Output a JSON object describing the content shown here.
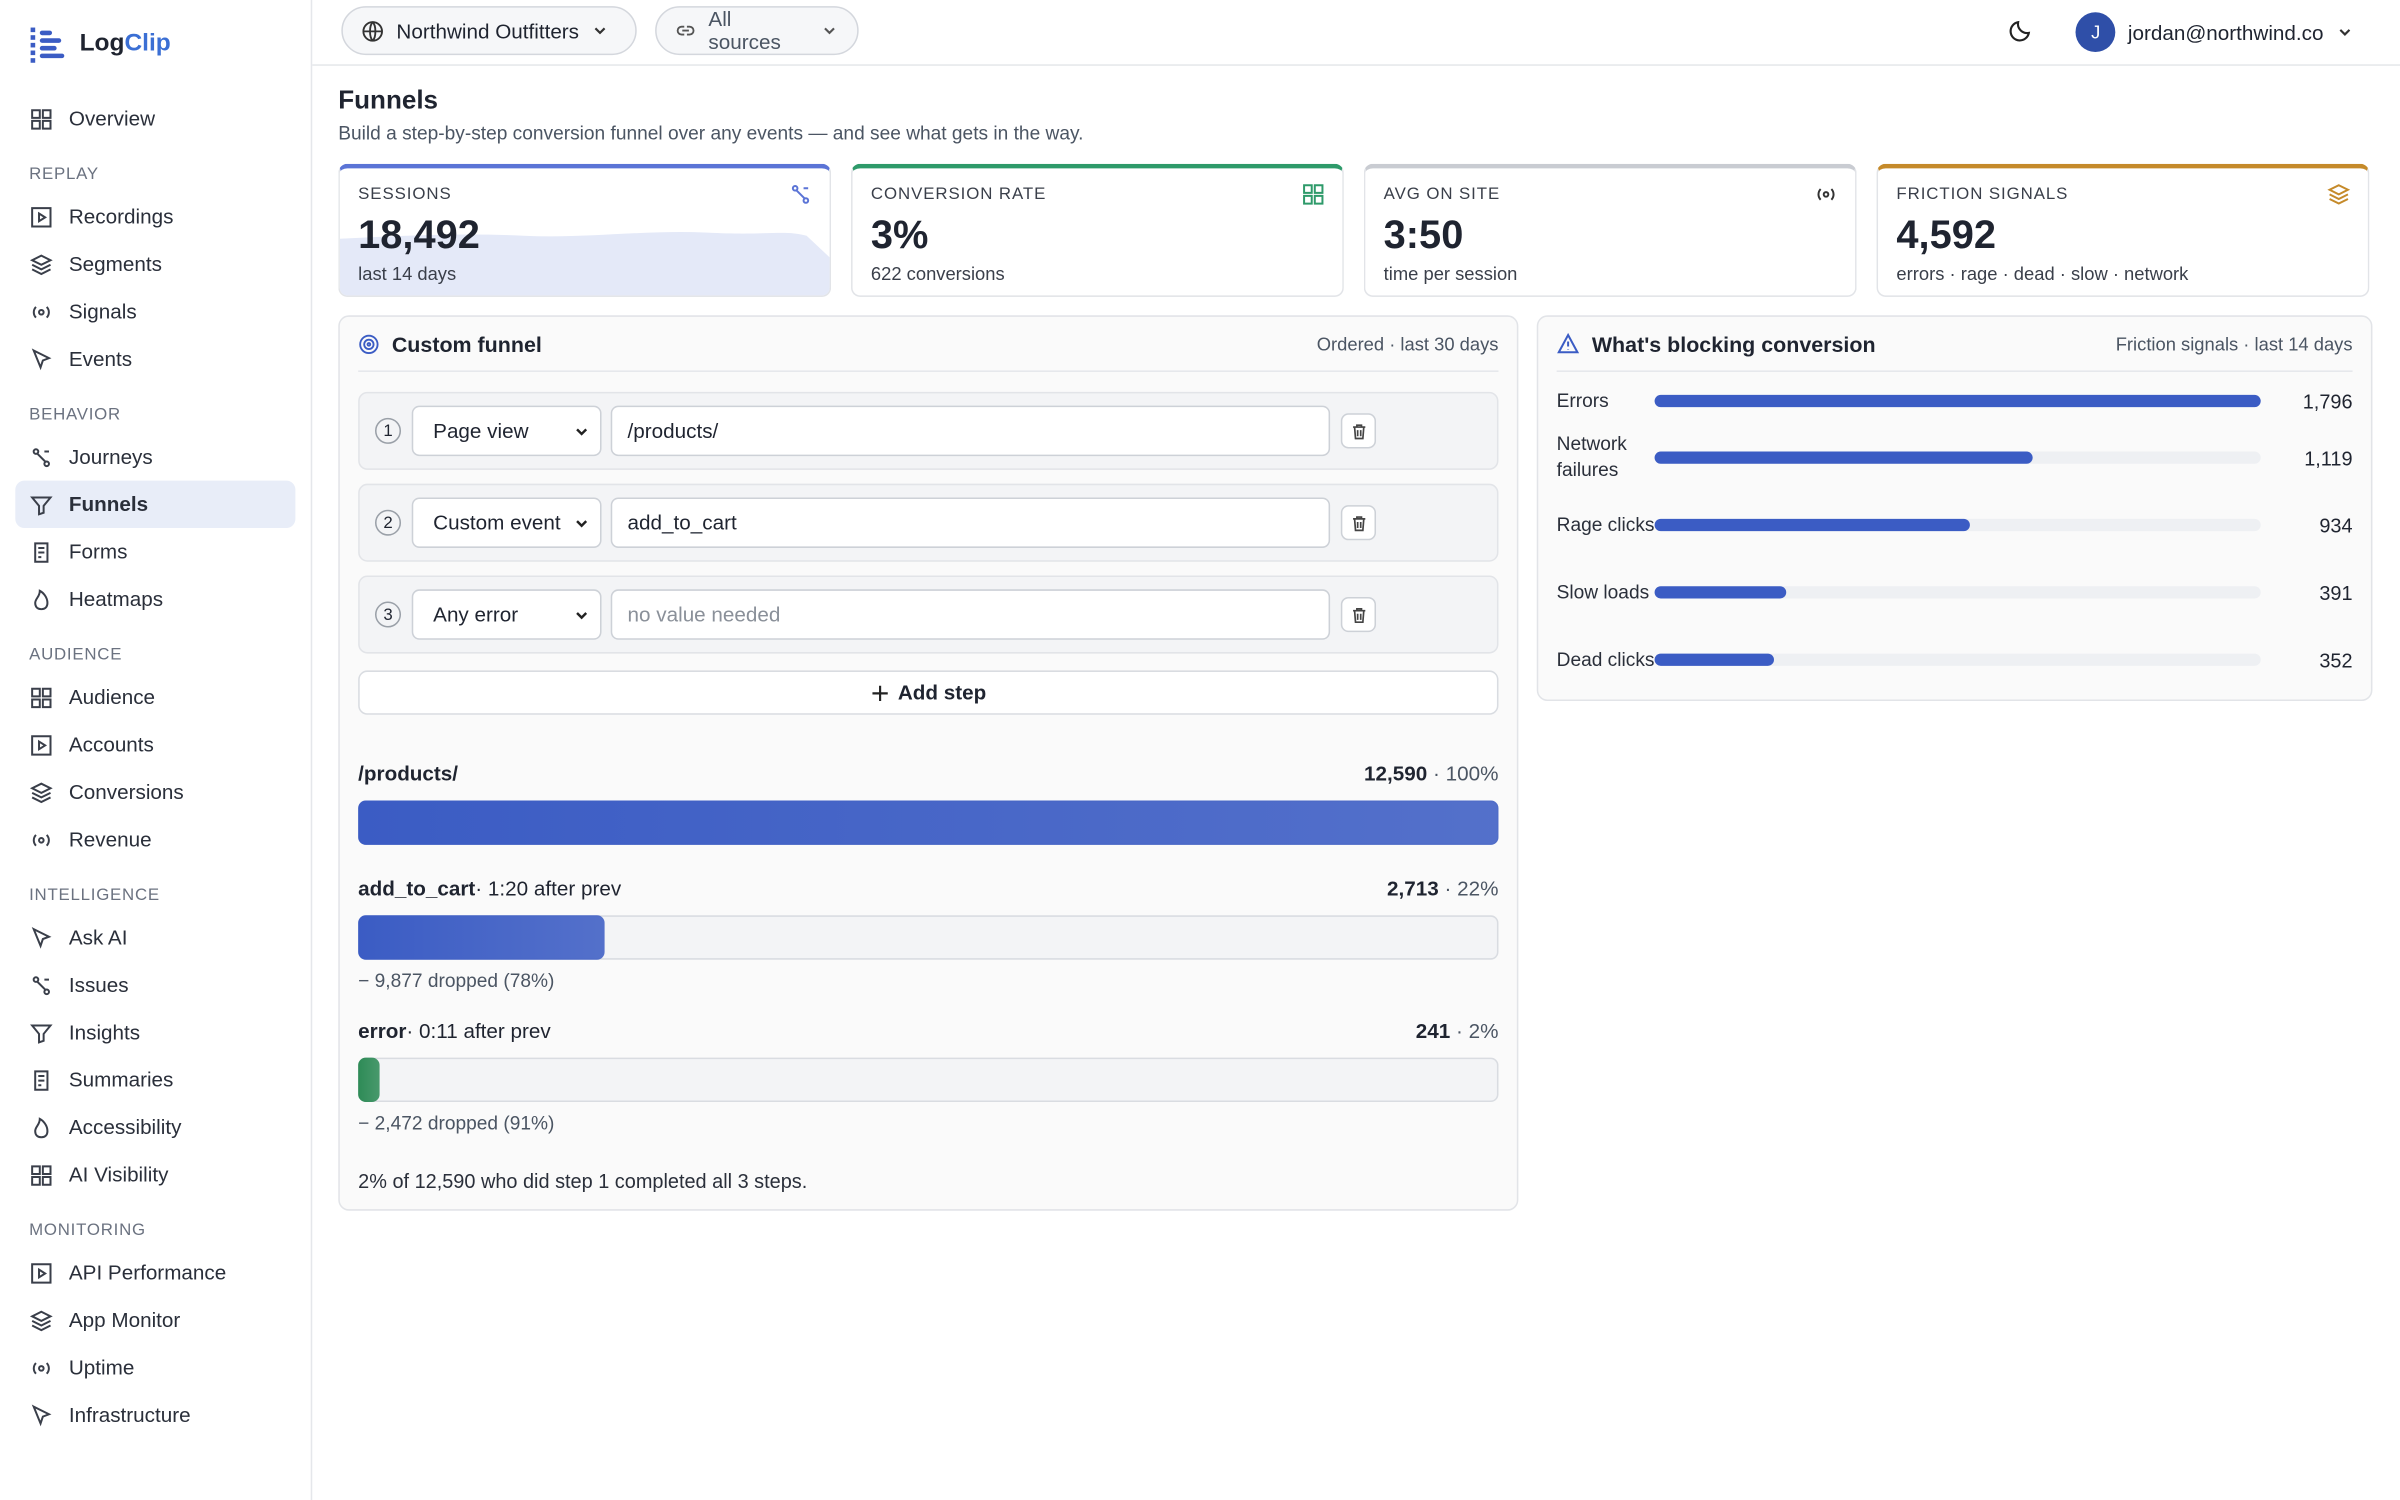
{
  "brand": {
    "name_a": "Log",
    "name_b": "Clip"
  },
  "nav_top": [
    "Overview"
  ],
  "nav_sections": [
    {
      "title": "REPLAY",
      "items": [
        {
          "label": "Recordings"
        },
        {
          "label": "Segments"
        },
        {
          "label": "Signals"
        },
        {
          "label": "Events"
        }
      ]
    },
    {
      "title": "BEHAVIOR",
      "items": [
        {
          "label": "Journeys"
        },
        {
          "label": "Funnels",
          "active": true
        },
        {
          "label": "Forms"
        },
        {
          "label": "Heatmaps"
        }
      ]
    },
    {
      "title": "AUDIENCE",
      "items": [
        {
          "label": "Audience"
        },
        {
          "label": "Accounts"
        },
        {
          "label": "Conversions"
        },
        {
          "label": "Revenue"
        }
      ]
    },
    {
      "title": "INTELLIGENCE",
      "items": [
        {
          "label": "Ask AI"
        },
        {
          "label": "Issues"
        },
        {
          "label": "Insights"
        },
        {
          "label": "Summaries"
        },
        {
          "label": "Accessibility"
        },
        {
          "label": "AI Visibility"
        }
      ]
    },
    {
      "title": "MONITORING",
      "items": [
        {
          "label": "API Performance"
        },
        {
          "label": "App Monitor"
        },
        {
          "label": "Uptime"
        },
        {
          "label": "Infrastructure"
        }
      ]
    }
  ],
  "header": {
    "workspace": "Northwind Outfitters",
    "source": "All sources",
    "avatar": "J",
    "user": "jordan@northwind.co"
  },
  "page": {
    "title": "Funnels",
    "subtitle": "Build a step-by-step conversion funnel over any events — and see what gets in the way."
  },
  "kpis": [
    {
      "label": "SESSIONS",
      "value": "18,492",
      "sub": "last 14 days",
      "color": "#5b74d6"
    },
    {
      "label": "CONVERSION RATE",
      "value": "3%",
      "sub": "622 conversions",
      "color": "#2e9a6a"
    },
    {
      "label": "AVG ON SITE",
      "value": "3:50",
      "sub": "time per session",
      "color": "#c9ccd2"
    },
    {
      "label": "FRICTION SIGNALS",
      "value": "4,592",
      "sub": "errors · rage · dead · slow · network",
      "color": "#c58a2a"
    }
  ],
  "funnel": {
    "title": "Custom funnel",
    "meta": "Ordered · last 30 days",
    "steps": [
      {
        "n": "1",
        "event": "Page view",
        "value": "/products/"
      },
      {
        "n": "2",
        "event": "Custom event",
        "value": "add_to_cart"
      },
      {
        "n": "3",
        "event": "Any error",
        "placeholder": "no value needed"
      }
    ],
    "add_step": "Add step",
    "results": [
      {
        "name": "/products/",
        "count": 12590,
        "count_label": "12,590",
        "share": " · 100%",
        "color": "#3b5cc4"
      },
      {
        "name": "add_to_cart",
        "timing": " · 1:20 after prev",
        "count": 2713,
        "count_label": "2,713",
        "share": " · 22%",
        "dropped": "− 9,877 dropped (78%)",
        "color": "#3b5cc4"
      },
      {
        "name": "error",
        "timing": " · 0:11 after prev",
        "count": 241,
        "count_label": "241",
        "share": " · 2%",
        "dropped": "− 2,472 dropped (91%)",
        "color": "#2e8b57"
      }
    ],
    "summary": "2% of 12,590 who did step 1 completed all 3 steps."
  },
  "blocking": {
    "title": "What's blocking conversion",
    "meta": "Friction signals · last 14 days",
    "items": [
      {
        "label": "Errors",
        "value": 1796,
        "value_label": "1,796"
      },
      {
        "label": "Network failures",
        "value": 1119,
        "value_label": "1,119"
      },
      {
        "label": "Rage clicks",
        "value": 934,
        "value_label": "934"
      },
      {
        "label": "Slow loads",
        "value": 391,
        "value_label": "391"
      },
      {
        "label": "Dead clicks",
        "value": 352,
        "value_label": "352"
      }
    ]
  }
}
